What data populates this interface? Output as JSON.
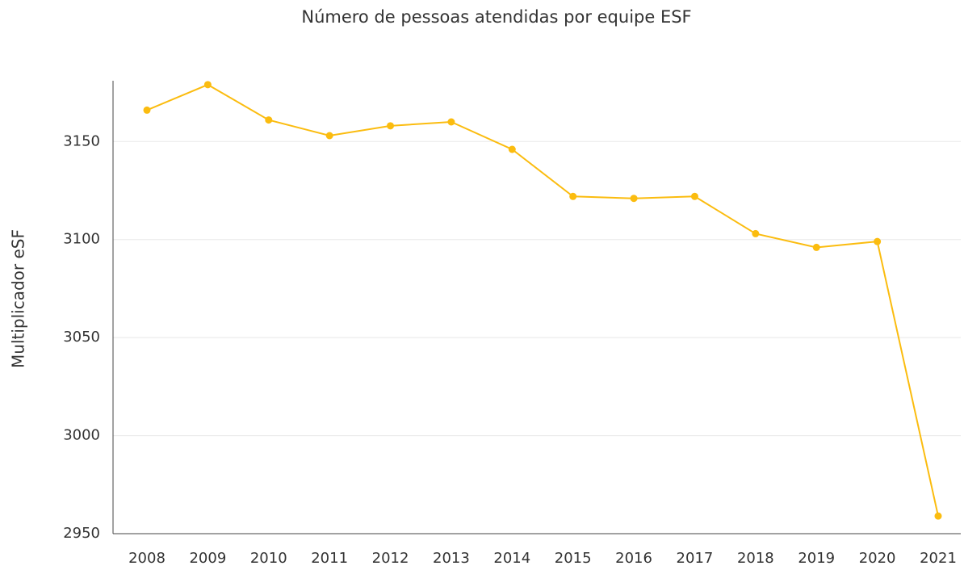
{
  "chart_data": {
    "type": "line",
    "title": "Número de pessoas atendidas por equipe ESF",
    "y_label": "Multiplicador eSF",
    "categories": [
      "2008",
      "2009",
      "2010",
      "2011",
      "2012",
      "2013",
      "2014",
      "2015",
      "2016",
      "2017",
      "2018",
      "2019",
      "2020",
      "2021"
    ],
    "values": [
      3166,
      3179,
      3161,
      3153,
      3158,
      3160,
      3146,
      3122,
      3121,
      3122,
      3103,
      3096,
      3099,
      2959
    ],
    "color": "#fbbc0f",
    "ylim": [
      2950,
      3181
    ],
    "yticks": [
      2950,
      3000,
      3050,
      3100,
      3150
    ],
    "grid": true
  }
}
